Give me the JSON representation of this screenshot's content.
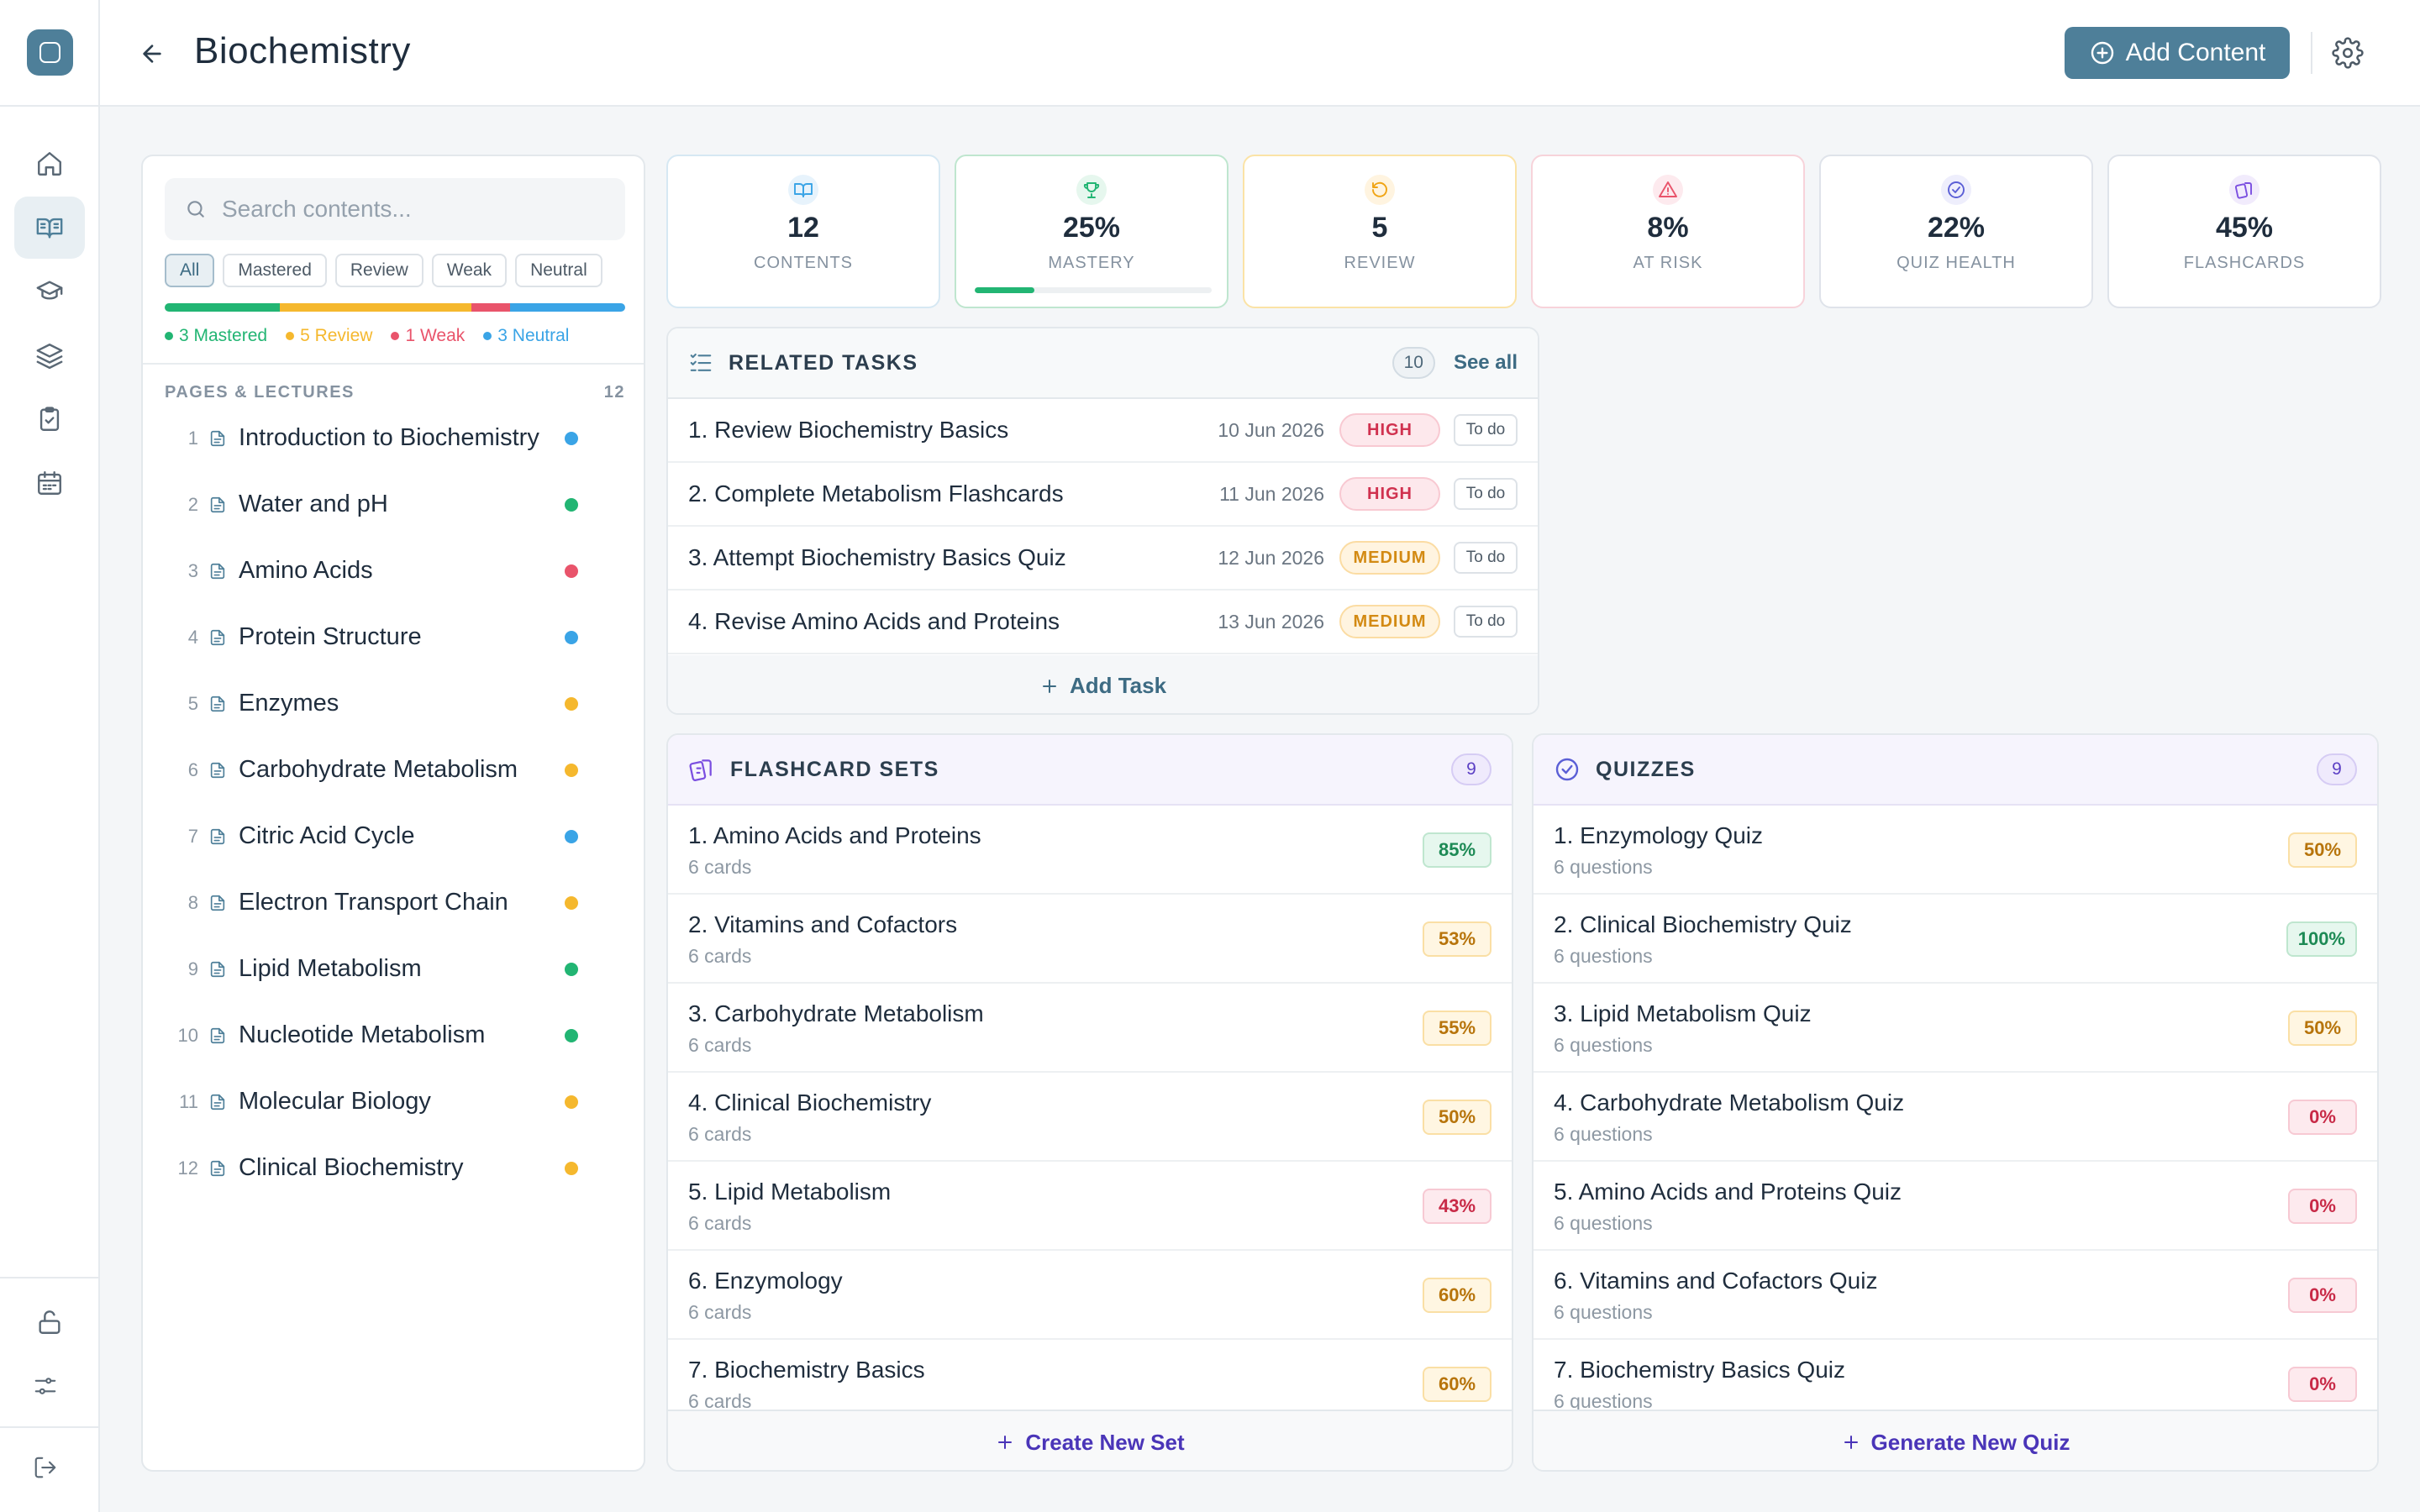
{
  "page": {
    "title": "Biochemistry"
  },
  "header": {
    "add_content_label": "Add Content"
  },
  "rail": {
    "nav_icons": [
      "home-icon",
      "book-open-icon",
      "graduation-cap-icon",
      "layers-icon",
      "clipboard-check-icon",
      "calendar-icon"
    ],
    "bottom_icons": [
      "unlock-icon",
      "sliders-icon",
      "logout-icon"
    ]
  },
  "contents_panel": {
    "search_placeholder": "Search contents...",
    "filters": [
      "All",
      "Mastered",
      "Review",
      "Weak",
      "Neutral"
    ],
    "active_filter": "All",
    "legend": [
      {
        "label": "3 Mastered",
        "color": "#22b573"
      },
      {
        "label": "5 Review",
        "color": "#f5b82e"
      },
      {
        "label": "1 Weak",
        "color": "#e9546b"
      },
      {
        "label": "3 Neutral",
        "color": "#3aa4e6"
      }
    ],
    "section_title": "PAGES & LECTURES",
    "section_count": "12",
    "pages": [
      {
        "num": "1",
        "label": "Introduction to Biochemistry",
        "status_color": "#3aa4e6"
      },
      {
        "num": "2",
        "label": "Water and pH",
        "status_color": "#22b573"
      },
      {
        "num": "3",
        "label": "Amino Acids",
        "status_color": "#e9546b"
      },
      {
        "num": "4",
        "label": "Protein Structure",
        "status_color": "#3aa4e6"
      },
      {
        "num": "5",
        "label": "Enzymes",
        "status_color": "#f5b82e"
      },
      {
        "num": "6",
        "label": "Carbohydrate Metabolism",
        "status_color": "#f5b82e"
      },
      {
        "num": "7",
        "label": "Citric Acid Cycle",
        "status_color": "#3aa4e6"
      },
      {
        "num": "8",
        "label": "Electron Transport Chain",
        "status_color": "#f5b82e"
      },
      {
        "num": "9",
        "label": "Lipid Metabolism",
        "status_color": "#22b573"
      },
      {
        "num": "10",
        "label": "Nucleotide Metabolism",
        "status_color": "#22b573"
      },
      {
        "num": "11",
        "label": "Molecular Biology",
        "status_color": "#f5b82e"
      },
      {
        "num": "12",
        "label": "Clinical Biochemistry",
        "status_color": "#f5b82e"
      }
    ]
  },
  "stats": [
    {
      "value": "12",
      "label": "CONTENTS",
      "icon": "book-icon",
      "color": "#3aa4e6",
      "bg": "#e7f3fc",
      "border": "#d6e8f3"
    },
    {
      "value": "25%",
      "label": "MASTERY",
      "icon": "trophy-icon",
      "color": "#22b573",
      "bg": "#e6f7ee",
      "border": "#bfe6cf",
      "progress": 0.25
    },
    {
      "value": "5",
      "label": "REVIEW",
      "icon": "refresh-icon",
      "color": "#f0a414",
      "bg": "#fff4e0",
      "border": "#fbe3a6"
    },
    {
      "value": "8%",
      "label": "AT RISK",
      "icon": "warning-icon",
      "color": "#e9546b",
      "bg": "#fdeaee",
      "border": "#f7d3da"
    },
    {
      "value": "22%",
      "label": "QUIZ HEALTH",
      "icon": "check-circle-icon",
      "color": "#5b5fd6",
      "bg": "#eeeefc",
      "border": "#dfe3ea"
    },
    {
      "value": "45%",
      "label": "FLASHCARDS",
      "icon": "flashcard-icon",
      "color": "#7b4fe0",
      "bg": "#f1ebfc",
      "border": "#dfe3ea"
    }
  ],
  "tasks": {
    "title": "RELATED TASKS",
    "count": "10",
    "see_all": "See all",
    "add_label": "Add Task",
    "items": [
      {
        "label": "1. Review Biochemistry Basics",
        "date": "10 Jun 2026",
        "priority": "HIGH",
        "status": "To do"
      },
      {
        "label": "2. Complete Metabolism Flashcards",
        "date": "11 Jun 2026",
        "priority": "HIGH",
        "status": "To do"
      },
      {
        "label": "3. Attempt Biochemistry Basics Quiz",
        "date": "12 Jun 2026",
        "priority": "MEDIUM",
        "status": "To do"
      },
      {
        "label": "4. Revise Amino Acids and Proteins",
        "date": "13 Jun 2026",
        "priority": "MEDIUM",
        "status": "To do"
      }
    ]
  },
  "flashcards": {
    "title": "FLASHCARD SETS",
    "count": "9",
    "footer": "Create New Set",
    "items": [
      {
        "title": "1. Amino Acids and Proteins",
        "sub": "6 cards",
        "pct": "85%",
        "tone": "green"
      },
      {
        "title": "2. Vitamins and Cofactors",
        "sub": "6 cards",
        "pct": "53%",
        "tone": "amber"
      },
      {
        "title": "3. Carbohydrate Metabolism",
        "sub": "6 cards",
        "pct": "55%",
        "tone": "amber"
      },
      {
        "title": "4. Clinical Biochemistry",
        "sub": "6 cards",
        "pct": "50%",
        "tone": "amber"
      },
      {
        "title": "5. Lipid Metabolism",
        "sub": "6 cards",
        "pct": "43%",
        "tone": "red"
      },
      {
        "title": "6. Enzymology",
        "sub": "6 cards",
        "pct": "60%",
        "tone": "amber"
      },
      {
        "title": "7. Biochemistry Basics",
        "sub": "6 cards",
        "pct": "60%",
        "tone": "amber"
      }
    ]
  },
  "quizzes": {
    "title": "QUIZZES",
    "count": "9",
    "footer": "Generate New Quiz",
    "items": [
      {
        "title": "1. Enzymology Quiz",
        "sub": "6 questions",
        "pct": "50%",
        "tone": "amber"
      },
      {
        "title": "2. Clinical Biochemistry Quiz",
        "sub": "6 questions",
        "pct": "100%",
        "tone": "green"
      },
      {
        "title": "3. Lipid Metabolism Quiz",
        "sub": "6 questions",
        "pct": "50%",
        "tone": "amber"
      },
      {
        "title": "4. Carbohydrate Metabolism Quiz",
        "sub": "6 questions",
        "pct": "0%",
        "tone": "red"
      },
      {
        "title": "5. Amino Acids and Proteins Quiz",
        "sub": "6 questions",
        "pct": "0%",
        "tone": "red"
      },
      {
        "title": "6. Vitamins and Cofactors Quiz",
        "sub": "6 questions",
        "pct": "0%",
        "tone": "red"
      },
      {
        "title": "7. Biochemistry Basics Quiz",
        "sub": "6 questions",
        "pct": "0%",
        "tone": "red"
      }
    ]
  }
}
